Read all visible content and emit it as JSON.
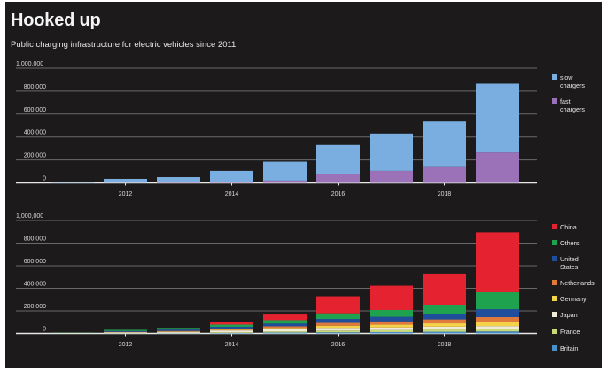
{
  "header": {
    "title": "Hooked up",
    "subtitle": "Public charging infrastructure for electric vehicles since 2011"
  },
  "chart_data": [
    {
      "type": "bar",
      "stacked": true,
      "title": "Hooked up",
      "subtitle": "Public charging infrastructure for electric vehicles since 2011",
      "xlabel": "",
      "ylabel": "",
      "categories": [
        "2011",
        "2012",
        "2013",
        "2014",
        "2015",
        "2016",
        "2017",
        "2018",
        "2019"
      ],
      "x_tick_labels": [
        "2012",
        "2014",
        "2016",
        "2018"
      ],
      "y_tick_labels": [
        "0",
        "200,000",
        "400,000",
        "600,000",
        "800,000",
        "1,000,000"
      ],
      "y_ticks": [
        0,
        200000,
        400000,
        600000,
        800000,
        1000000
      ],
      "ylim": [
        0,
        1000000
      ],
      "grid": true,
      "legend_position": "right",
      "series": [
        {
          "name": "fast chargers",
          "label": "fast\nchargers",
          "color": "#9b72b8",
          "values": [
            1000,
            2000,
            4000,
            10000,
            20000,
            75000,
            105000,
            145000,
            265000
          ]
        },
        {
          "name": "slow chargers",
          "label": "slow\nchargers",
          "color": "#7aaee0",
          "values": [
            9000,
            33000,
            46000,
            95000,
            165000,
            255000,
            325000,
            390000,
            600000
          ]
        }
      ],
      "legend": [
        {
          "lines": [
            "slow",
            "chargers"
          ],
          "color": "#7aaee0"
        },
        {
          "lines": [
            "fast",
            "chargers"
          ],
          "color": "#9b72b8"
        }
      ]
    },
    {
      "type": "bar",
      "stacked": true,
      "xlabel": "",
      "ylabel": "",
      "categories": [
        "2011",
        "2012",
        "2013",
        "2014",
        "2015",
        "2016",
        "2017",
        "2018",
        "2019"
      ],
      "x_tick_labels": [
        "2012",
        "2014",
        "2016",
        "2018"
      ],
      "y_tick_labels": [
        "0",
        "200,000",
        "400,000",
        "600,000",
        "800,000",
        "1,000,000"
      ],
      "y_ticks": [
        0,
        200000,
        400000,
        600000,
        800000,
        1000000
      ],
      "ylim": [
        0,
        1000000
      ],
      "grid": true,
      "legend_position": "right",
      "series": [
        {
          "name": "Britain",
          "color": "#4a8fc6",
          "values": [
            1000,
            2000,
            3000,
            5000,
            8000,
            10000,
            12000,
            15000,
            18000
          ]
        },
        {
          "name": "France",
          "color": "#c8d97a",
          "values": [
            1000,
            2000,
            3000,
            6000,
            10000,
            16000,
            17000,
            20000,
            22000
          ]
        },
        {
          "name": "Japan",
          "color": "#f2ead8",
          "values": [
            2000,
            5000,
            8000,
            15000,
            20000,
            23000,
            24000,
            25000,
            25000
          ]
        },
        {
          "name": "Germany",
          "color": "#f4d24a",
          "values": [
            1000,
            2000,
            3000,
            5000,
            10000,
            20000,
            25000,
            30000,
            40000
          ]
        },
        {
          "name": "Netherlands",
          "color": "#e07a3c",
          "values": [
            1000,
            3000,
            5000,
            10000,
            15000,
            25000,
            30000,
            35000,
            40000
          ]
        },
        {
          "name": "United States",
          "color": "#1f4e9c",
          "values": [
            1000,
            8000,
            12000,
            18000,
            25000,
            35000,
            40000,
            50000,
            70000
          ]
        },
        {
          "name": "Others",
          "color": "#1fa24f",
          "values": [
            2000,
            10000,
            15000,
            20000,
            30000,
            50000,
            60000,
            80000,
            150000
          ]
        },
        {
          "name": "China",
          "color": "#e52330",
          "values": [
            0,
            0,
            0,
            25000,
            50000,
            150000,
            215000,
            275000,
            530000
          ]
        }
      ],
      "legend": [
        {
          "lines": [
            "China"
          ],
          "color": "#e52330"
        },
        {
          "lines": [
            "Others"
          ],
          "color": "#1fa24f"
        },
        {
          "lines": [
            "United",
            "States"
          ],
          "color": "#1f4e9c"
        },
        {
          "lines": [
            "Netherlands"
          ],
          "color": "#e07a3c"
        },
        {
          "lines": [
            "Germany"
          ],
          "color": "#f4d24a"
        },
        {
          "lines": [
            "Japan"
          ],
          "color": "#f2ead8"
        },
        {
          "lines": [
            "France"
          ],
          "color": "#c8d97a"
        },
        {
          "lines": [
            "Britain"
          ],
          "color": "#4a8fc6"
        }
      ]
    }
  ]
}
